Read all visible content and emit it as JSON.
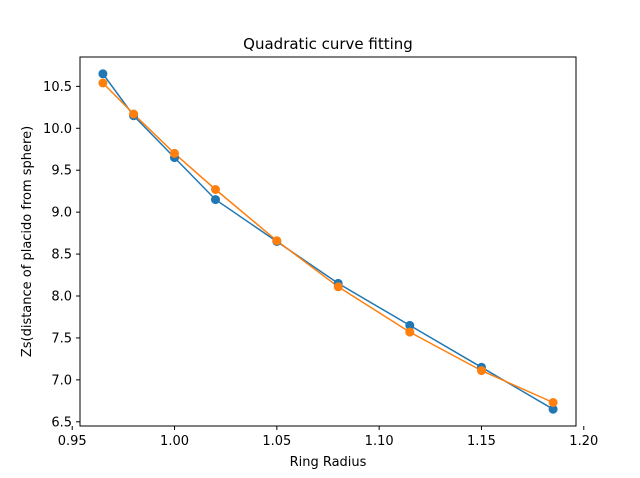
{
  "chart_data": {
    "type": "line",
    "title": "Quadratic curve fitting",
    "xlabel": "Ring Radius",
    "ylabel": "Zs(distance of placido from sphere)",
    "xlim": [
      0.9538,
      1.1962
    ],
    "ylim": [
      6.45,
      10.85
    ],
    "xticks": [
      0.95,
      1.0,
      1.05,
      1.1,
      1.15,
      1.2
    ],
    "xtick_labels": [
      "0.95",
      "1.00",
      "1.05",
      "1.10",
      "1.15",
      "1.20"
    ],
    "yticks": [
      6.5,
      7.0,
      7.5,
      8.0,
      8.5,
      9.0,
      9.5,
      10.0,
      10.5
    ],
    "ytick_labels": [
      "6.5",
      "7.0",
      "7.5",
      "8.0",
      "8.5",
      "9.0",
      "9.5",
      "10.0",
      "10.5"
    ],
    "grid": false,
    "legend": "none",
    "x": [
      0.965,
      0.98,
      1.0,
      1.02,
      1.05,
      1.08,
      1.115,
      1.15,
      1.185
    ],
    "series": [
      {
        "color": "#1f77b4",
        "values": [
          10.65,
          10.15,
          9.65,
          9.15,
          8.65,
          8.15,
          7.65,
          7.15,
          6.65
        ]
      },
      {
        "color": "#ff7f0e",
        "values": [
          10.54,
          10.17,
          9.7,
          9.27,
          8.66,
          8.11,
          7.57,
          7.11,
          6.73
        ]
      }
    ]
  }
}
